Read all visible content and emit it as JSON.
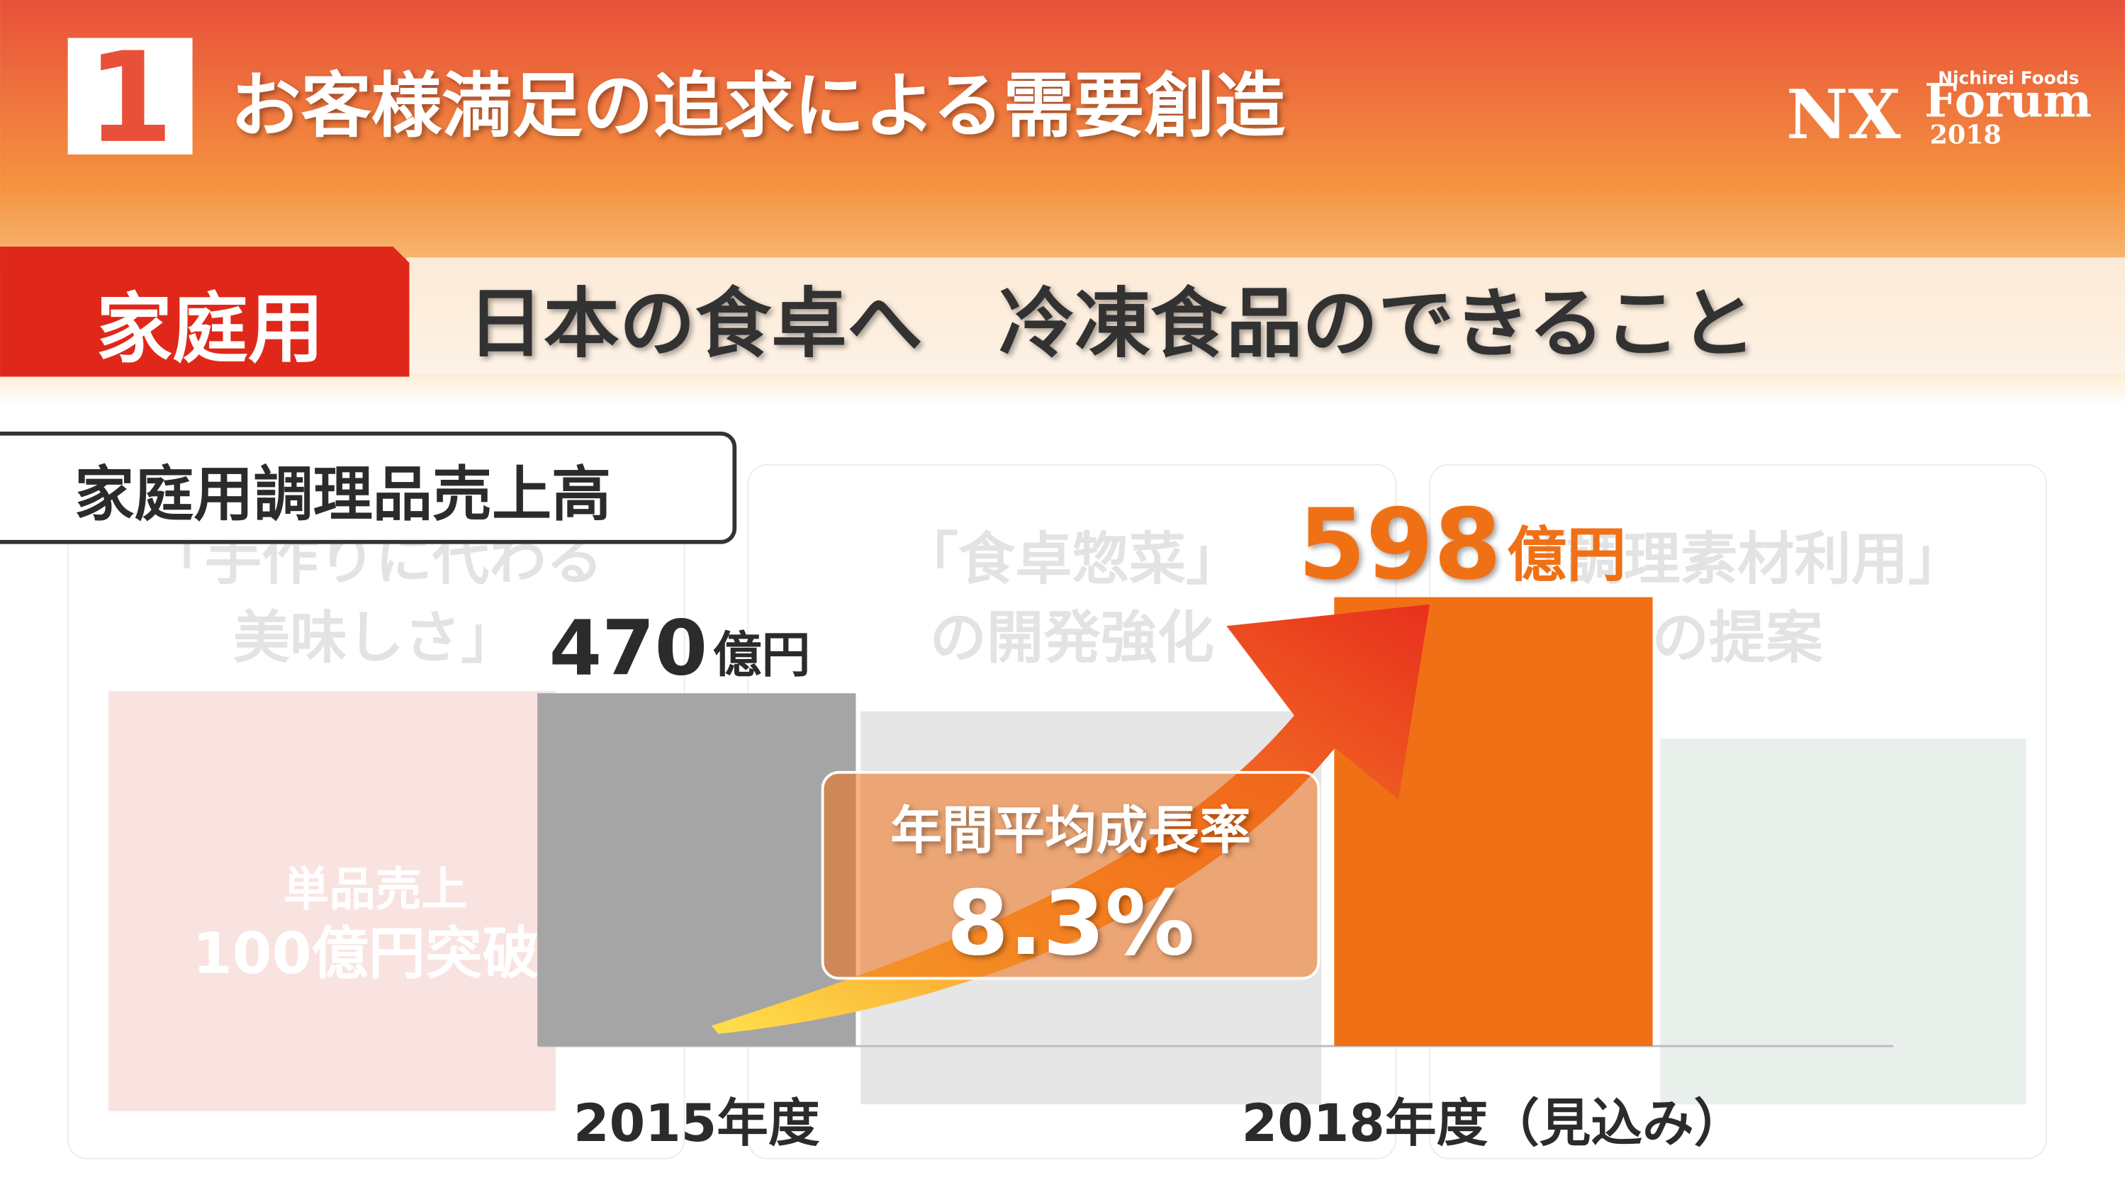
{
  "header": {
    "number": "1",
    "title": "お客様満足の追求による需要創造",
    "logo": {
      "company": "Nichirei Foods",
      "nx": "NX",
      "forum": "Forum",
      "year": "2018"
    }
  },
  "section": {
    "tab": "家庭用",
    "heading": "日本の食卓へ　冷凍食品のできること"
  },
  "background_panels": [
    {
      "lines": [
        "「手作りに代わる",
        "美味しさ」"
      ],
      "product": [
        "単品売上",
        "100億円突破"
      ]
    },
    {
      "lines": [
        "「食卓惣菜」",
        "の開発強化"
      ]
    },
    {
      "lines": [
        "「調理素材利用」",
        "の提案"
      ]
    }
  ],
  "chart_data": {
    "type": "bar",
    "title": "家庭用調理品売上高",
    "categories": [
      "2015年度",
      "2018年度（見込み）"
    ],
    "values": [
      470,
      598
    ],
    "value_unit": "億円",
    "colors": [
      "#a5a5a5",
      "#f07016"
    ],
    "label_colors": [
      "#2b2b2b",
      "#f07016"
    ],
    "annotation": {
      "label": "年間平均成長率",
      "value": "8.3%"
    }
  }
}
